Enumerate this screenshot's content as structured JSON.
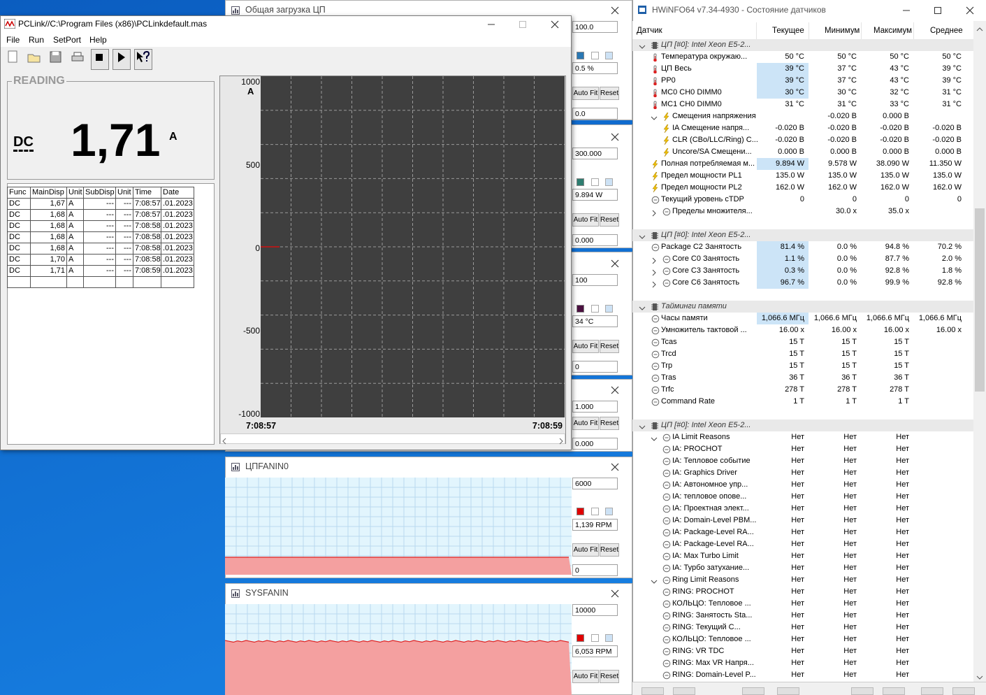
{
  "pclink": {
    "title": "PCLink//C:\\Program Files (x86)\\PCLinkdefault.mas",
    "menu": [
      "File",
      "Run",
      "SetPort",
      "Help"
    ],
    "reading": {
      "label": "READING",
      "func": "DC",
      "value": "1,71",
      "unit": "A"
    },
    "table": {
      "headers": [
        "Func",
        "MainDisp",
        "Unit",
        "SubDisp",
        "Unit",
        "Time",
        "Date"
      ],
      "rows": [
        [
          "DC",
          "1,67",
          "A",
          "---",
          "---",
          "7:08:57",
          ".01.2023"
        ],
        [
          "DC",
          "1,68",
          "A",
          "---",
          "---",
          "7:08:57",
          ".01.2023"
        ],
        [
          "DC",
          "1,68",
          "A",
          "---",
          "---",
          "7:08:58",
          ".01.2023"
        ],
        [
          "DC",
          "1,68",
          "A",
          "---",
          "---",
          "7:08:58",
          ".01.2023"
        ],
        [
          "DC",
          "1,68",
          "A",
          "---",
          "---",
          "7:08:58",
          ".01.2023"
        ],
        [
          "DC",
          "1,70",
          "A",
          "---",
          "---",
          "7:08:58",
          ".01.2023"
        ],
        [
          "DC",
          "1,71",
          "A",
          "---",
          "---",
          "7:08:59",
          ".01.2023"
        ]
      ]
    },
    "trend": {
      "unit": "A",
      "yticks": [
        "1000",
        "500",
        "0",
        "-500",
        "-1000"
      ],
      "xlabels": [
        "7:08:57",
        "7:08:59"
      ]
    }
  },
  "buttons": {
    "auto_fit": "Auto Fit",
    "reset": "Reset"
  },
  "sensor_graphs": [
    {
      "title": "Общая загрузка ЦП",
      "max": "100.0",
      "current": "0.5 %",
      "min": "0.0",
      "color": "#2a78b4"
    },
    {
      "max": "300.000",
      "current": "9.894 W",
      "min": "0.000",
      "color": "#2e7d70"
    },
    {
      "max": "100",
      "current": "34 °C",
      "min": "0",
      "color": "#4a1040"
    },
    {
      "max": "1.000",
      "min": "0.000"
    },
    {
      "title": "ЦПFANIN0",
      "max": "6000",
      "current": "1,139 RPM",
      "min": "0",
      "color": "#e00000"
    },
    {
      "title": "SYSFANIN",
      "max": "10000",
      "current": "6,053 RPM",
      "color": "#e00000"
    }
  ],
  "sensors": {
    "title": "HWiNFO64 v7.34-4930 - Состояние датчиков",
    "columns": [
      "Датчик",
      "Текущее",
      "Минимум",
      "Максимум",
      "Среднее"
    ],
    "sections": [
      {
        "title": "ЦП [#0]: Intel Xeon E5-2...",
        "rows": [
          {
            "name": "Температура окружаю...",
            "current": "50 °C",
            "min": "50 °C",
            "max": "50 °C",
            "average": "50 °C"
          },
          {
            "name": "ЦП Весь",
            "current": "39 °C",
            "min": "37 °C",
            "max": "43 °C",
            "average": "39 °C",
            "highlight": true
          },
          {
            "name": "PP0",
            "current": "39 °C",
            "min": "37 °C",
            "max": "43 °C",
            "average": "39 °C",
            "highlight": true
          },
          {
            "name": "MC0 CH0 DIMM0",
            "current": "30 °C",
            "min": "30 °C",
            "max": "32 °C",
            "average": "31 °C",
            "highlight": true
          },
          {
            "name": "MC1 CH0 DIMM0",
            "current": "31 °C",
            "min": "31 °C",
            "max": "33 °C",
            "average": "31 °C"
          },
          {
            "name": "Смещения напряжения",
            "min": "-0.020 В",
            "max": "0.000 В",
            "children": [
              {
                "name": "IA Смещение напря...",
                "current": "-0.020 В",
                "min": "-0.020 В",
                "max": "-0.020 В",
                "average": "-0.020 В"
              },
              {
                "name": "CLR (CBo/LLC/Ring) C...",
                "current": "-0.020 В",
                "min": "-0.020 В",
                "max": "-0.020 В",
                "average": "-0.020 В"
              },
              {
                "name": "Uncore/SA Смещени...",
                "current": "0.000 В",
                "min": "0.000 В",
                "max": "0.000 В",
                "average": "0.000 В"
              }
            ]
          },
          {
            "name": "Полная потребляемая м...",
            "current": "9.894 W",
            "min": "9.578 W",
            "max": "38.090 W",
            "average": "11.350 W",
            "highlight": true
          },
          {
            "name": "Предел мощности PL1",
            "current": "135.0 W",
            "min": "135.0 W",
            "max": "135.0 W",
            "average": "135.0 W"
          },
          {
            "name": "Предел мощности PL2",
            "current": "162.0 W",
            "min": "162.0 W",
            "max": "162.0 W",
            "average": "162.0 W"
          },
          {
            "name": "Текущий уровень cTDP",
            "current": "0",
            "min": "0",
            "max": "0",
            "average": "0"
          },
          {
            "name": "Пределы множителя...",
            "min": "30.0 x",
            "max": "35.0 x",
            "collapsed": true
          }
        ]
      },
      {
        "title": "ЦП [#0]: Intel Xeon E5-2...",
        "rows": [
          {
            "name": "Package C2 Занятость",
            "current": "81.4 %",
            "min": "0.0 %",
            "max": "94.8 %",
            "average": "70.2 %",
            "highlight": true
          },
          {
            "name": "Core C0 Занятость",
            "current": "1.1 %",
            "min": "0.0 %",
            "max": "87.7 %",
            "average": "2.0 %",
            "highlight": true,
            "collapsed": true
          },
          {
            "name": "Core C3 Занятость",
            "current": "0.3 %",
            "min": "0.0 %",
            "max": "92.8 %",
            "average": "1.8 %",
            "highlight": true,
            "collapsed": true
          },
          {
            "name": "Core C6 Занятость",
            "current": "96.7 %",
            "min": "0.0 %",
            "max": "99.9 %",
            "average": "92.8 %",
            "highlight": true,
            "collapsed": true
          }
        ]
      },
      {
        "title": "Тайминги памяти",
        "rows": [
          {
            "name": "Часы памяти",
            "current": "1,066.6 МГц",
            "min": "1,066.6 МГц",
            "max": "1,066.6 МГц",
            "average": "1,066.6 МГц",
            "highlight": true
          },
          {
            "name": "Умножитель тактовой ...",
            "current": "16.00 x",
            "min": "16.00 x",
            "max": "16.00 x",
            "average": "16.00 x"
          },
          {
            "name": "Tcas",
            "current": "15 T",
            "min": "15 T",
            "max": "15 T"
          },
          {
            "name": "Trcd",
            "current": "15 T",
            "min": "15 T",
            "max": "15 T"
          },
          {
            "name": "Trp",
            "current": "15 T",
            "min": "15 T",
            "max": "15 T"
          },
          {
            "name": "Tras",
            "current": "36 T",
            "min": "36 T",
            "max": "36 T"
          },
          {
            "name": "Trfc",
            "current": "278 T",
            "min": "278 T",
            "max": "278 T"
          },
          {
            "name": "Command Rate",
            "current": "1 T",
            "min": "1 T",
            "max": "1 T"
          }
        ]
      },
      {
        "title": "ЦП [#0]: Intel Xeon E5-2...",
        "rows": [
          {
            "name": "IA Limit Reasons",
            "current": "Нет",
            "min": "Нет",
            "max": "Нет",
            "children": [
              {
                "name": "IA: PROCHOT",
                "current": "Нет",
                "min": "Нет",
                "max": "Нет"
              },
              {
                "name": "IA: Тепловое событие",
                "current": "Нет",
                "min": "Нет",
                "max": "Нет"
              },
              {
                "name": "IA: Graphics Driver",
                "current": "Нет",
                "min": "Нет",
                "max": "Нет"
              },
              {
                "name": "IA: Автономное упр...",
                "current": "Нет",
                "min": "Нет",
                "max": "Нет"
              },
              {
                "name": "IA: тепловое опове...",
                "current": "Нет",
                "min": "Нет",
                "max": "Нет"
              },
              {
                "name": "IA: Проектная элект...",
                "current": "Нет",
                "min": "Нет",
                "max": "Нет"
              },
              {
                "name": "IA: Domain-Level PBM...",
                "current": "Нет",
                "min": "Нет",
                "max": "Нет"
              },
              {
                "name": "IA: Package-Level RA...",
                "current": "Нет",
                "min": "Нет",
                "max": "Нет"
              },
              {
                "name": "IA: Package-Level RA...",
                "current": "Нет",
                "min": "Нет",
                "max": "Нет"
              },
              {
                "name": "IA: Max Turbo Limit",
                "current": "Нет",
                "min": "Нет",
                "max": "Нет"
              },
              {
                "name": "IA: Турбо затухание...",
                "current": "Нет",
                "min": "Нет",
                "max": "Нет"
              }
            ]
          },
          {
            "name": "Ring Limit Reasons",
            "current": "Нет",
            "min": "Нет",
            "max": "Нет",
            "children": [
              {
                "name": "RING: PROCHOT",
                "current": "Нет",
                "min": "Нет",
                "max": "Нет"
              },
              {
                "name": "КОЛЬЦО: Тепловое ...",
                "current": "Нет",
                "min": "Нет",
                "max": "Нет"
              },
              {
                "name": "RING: Занятость Sta...",
                "current": "Нет",
                "min": "Нет",
                "max": "Нет"
              },
              {
                "name": "RING: Текущий С...",
                "current": "Нет",
                "min": "Нет",
                "max": "Нет"
              },
              {
                "name": "КОЛЬЦО: Тепловое ...",
                "current": "Нет",
                "min": "Нет",
                "max": "Нет"
              },
              {
                "name": "RING: VR TDC",
                "current": "Нет",
                "min": "Нет",
                "max": "Нет"
              },
              {
                "name": "RING: Max VR Напря...",
                "current": "Нет",
                "min": "Нет",
                "max": "Нет"
              },
              {
                "name": "RING: Domain-Level P...",
                "current": "Нет",
                "min": "Нет",
                "max": "Нет"
              }
            ]
          }
        ]
      }
    ]
  }
}
